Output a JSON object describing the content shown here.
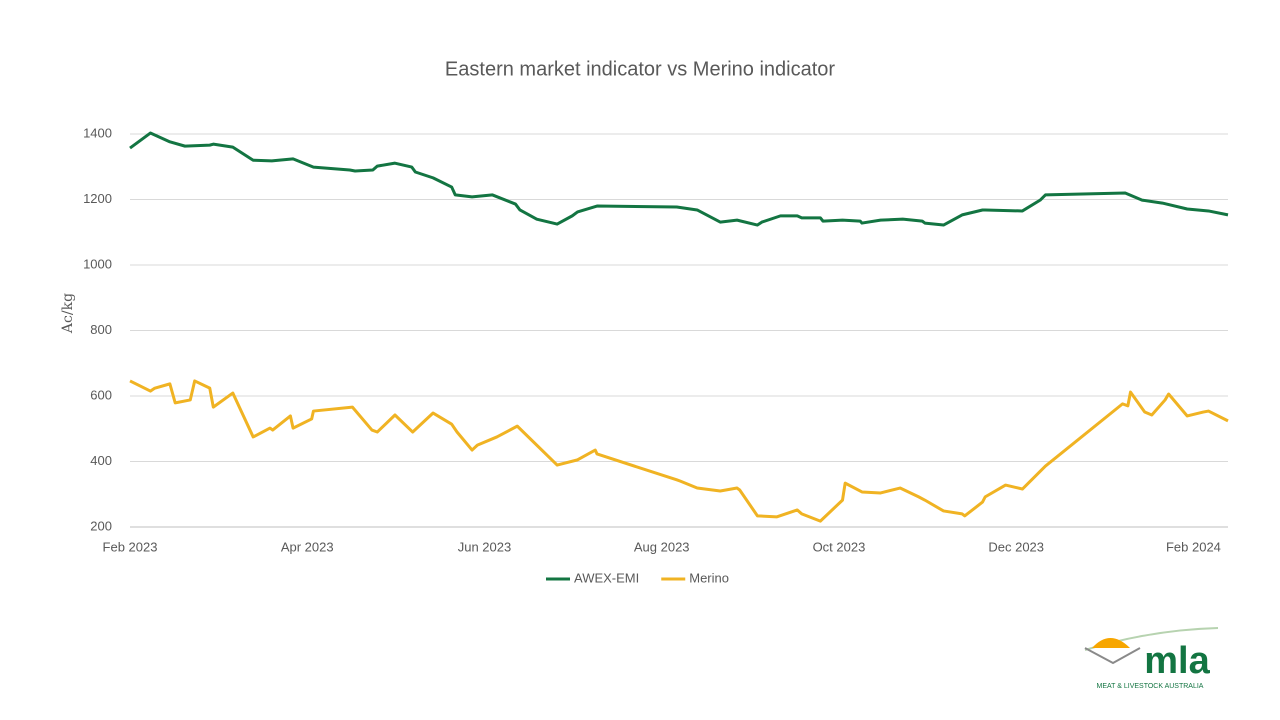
{
  "chart_data": {
    "type": "line",
    "title": "Eastern market indicator vs Merino indicator",
    "y_label": "Ac/kg",
    "xlim": [
      0,
      12.39
    ],
    "xticks": [
      {
        "value": 0,
        "label": "Feb 2023"
      },
      {
        "value": 2,
        "label": "Apr 2023"
      },
      {
        "value": 4,
        "label": "Jun 2023"
      },
      {
        "value": 6,
        "label": "Aug 2023"
      },
      {
        "value": 8,
        "label": "Oct 2023"
      },
      {
        "value": 10,
        "label": "Dec 2023"
      },
      {
        "value": 12,
        "label": "Feb 2024"
      }
    ],
    "ylim": [
      200,
      1400
    ],
    "yticks": [
      200,
      400,
      600,
      800,
      1000,
      1200,
      1400
    ],
    "grid": true,
    "legend": "bottom",
    "series": [
      {
        "name": "AWEX-EMI",
        "color": "#137542",
        "x": [
          0,
          0.23,
          0.45,
          0.62,
          0.9,
          0.94,
          1.16,
          1.39,
          1.6,
          1.84,
          2.07,
          2.48,
          2.54,
          2.74,
          2.79,
          2.99,
          3.18,
          3.22,
          3.42,
          3.63,
          3.67,
          3.86,
          4.09,
          4.35,
          4.4,
          4.59,
          4.82,
          4.99,
          5.05,
          5.27,
          6.17,
          6.4,
          6.66,
          6.85,
          7.08,
          7.13,
          7.34,
          7.53,
          7.58,
          7.79,
          7.82,
          8.04,
          8.24,
          8.26,
          8.47,
          8.72,
          8.94,
          8.97,
          9.18,
          9.39,
          9.62,
          9.65,
          10.07,
          10.27,
          10.33,
          11.23,
          11.42,
          11.65,
          11.93,
          12.17,
          12.39
        ],
        "values": [
          1357,
          1403,
          1376,
          1363,
          1366,
          1369,
          1360,
          1320,
          1318,
          1324,
          1299,
          1290,
          1287,
          1290,
          1302,
          1311,
          1299,
          1284,
          1266,
          1238,
          1214,
          1208,
          1214,
          1186,
          1168,
          1140,
          1125,
          1150,
          1162,
          1180,
          1177,
          1168,
          1131,
          1137,
          1122,
          1131,
          1150,
          1150,
          1144,
          1144,
          1134,
          1137,
          1134,
          1128,
          1137,
          1140,
          1134,
          1128,
          1122,
          1153,
          1168,
          1168,
          1165,
          1198,
          1214,
          1220,
          1198,
          1189,
          1171,
          1165,
          1153
        ]
      },
      {
        "name": "Merino",
        "color": "#f0b323",
        "x": [
          0,
          0.23,
          0.28,
          0.45,
          0.51,
          0.68,
          0.73,
          0.9,
          0.94,
          1.16,
          1.39,
          1.58,
          1.61,
          1.81,
          1.84,
          2.05,
          2.07,
          2.51,
          2.73,
          2.79,
          2.99,
          3.19,
          3.42,
          3.63,
          3.69,
          3.86,
          3.92,
          4.14,
          4.37,
          4.82,
          5.05,
          5.25,
          5.27,
          6.17,
          6.21,
          6.4,
          6.66,
          6.85,
          6.88,
          7.08,
          7.3,
          7.53,
          7.58,
          7.79,
          8.04,
          8.07,
          8.26,
          8.47,
          8.69,
          8.9,
          8.97,
          9.18,
          9.39,
          9.42,
          9.62,
          9.65,
          9.88,
          10.07,
          10.33,
          11.2,
          11.26,
          11.29,
          11.45,
          11.53,
          11.68,
          11.72,
          11.93,
          12.11,
          12.17,
          12.39
        ],
        "values": [
          646,
          615,
          624,
          637,
          579,
          588,
          646,
          624,
          566,
          609,
          475,
          502,
          496,
          539,
          502,
          530,
          554,
          566,
          496,
          490,
          542,
          490,
          548,
          514,
          490,
          435,
          450,
          475,
          508,
          389,
          405,
          435,
          423,
          344,
          340,
          319,
          310,
          319,
          313,
          234,
          231,
          252,
          240,
          218,
          282,
          334,
          307,
          304,
          319,
          292,
          282,
          249,
          240,
          234,
          276,
          292,
          328,
          316,
          386,
          576,
          570,
          612,
          551,
          542,
          588,
          606,
          539,
          551,
          554,
          524
        ]
      }
    ],
    "logo": {
      "name": "mla",
      "tagline": "MEAT & LIVESTOCK AUSTRALIA"
    }
  }
}
